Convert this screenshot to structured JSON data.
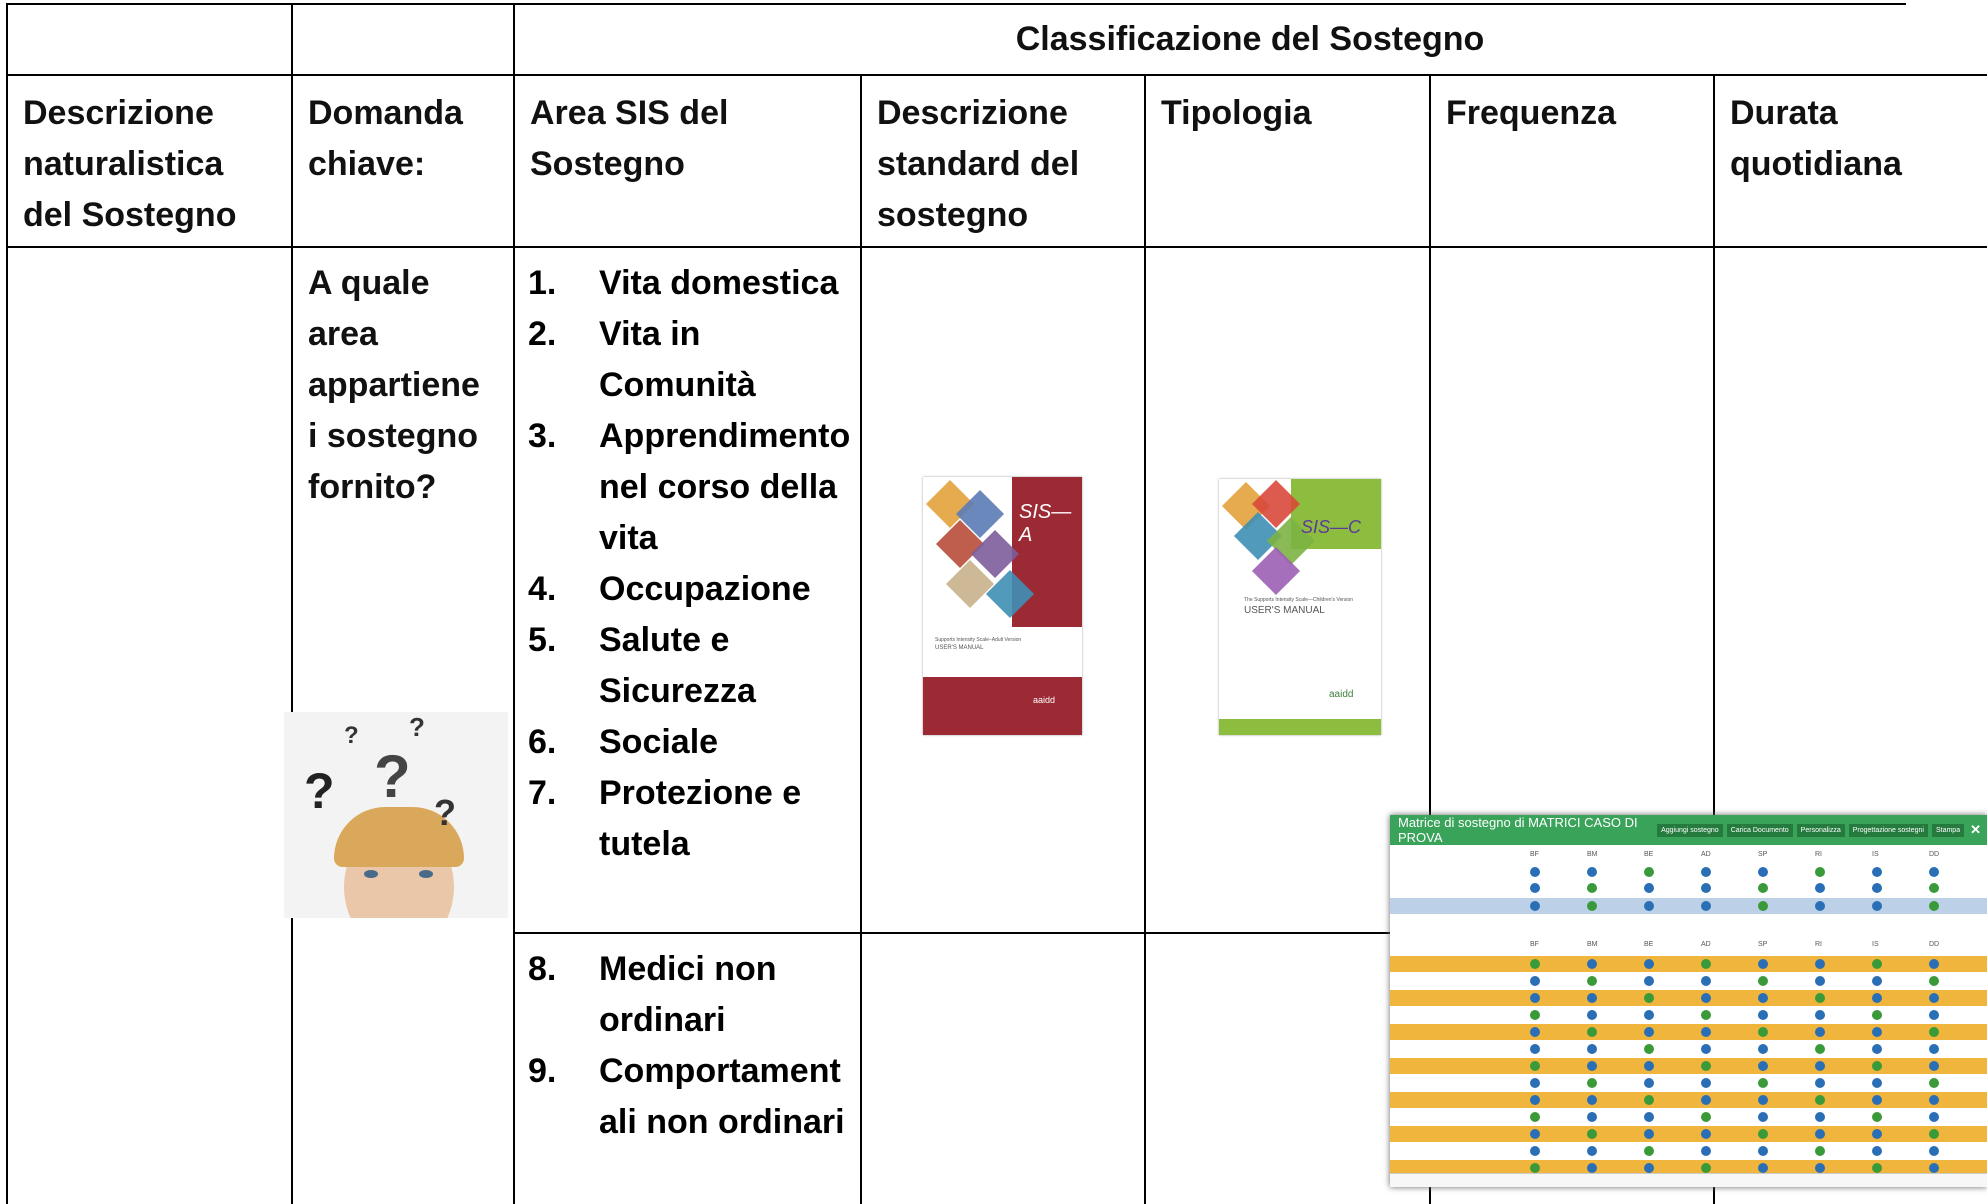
{
  "header": {
    "group_title": "Classificazione del Sostegno"
  },
  "table": {
    "headers": [
      "Descrizione naturalistica del Sostegno",
      "Domanda chiave:",
      "Area SIS del Sostegno",
      "Descrizione standard del sostegno",
      "Tipologia",
      "Frequenza",
      "Durata quotidiana"
    ],
    "question": "A quale area appartiene i sostegno fornito?",
    "areas_top": [
      {
        "number": "1.",
        "text": "Vita domestica"
      },
      {
        "number": "2.",
        "text": "Vita in Comunità"
      },
      {
        "number": "3.",
        "text": "Apprendimento nel corso della vita"
      },
      {
        "number": "4.",
        "text": "Occupazione"
      },
      {
        "number": "5.",
        "text": "Salute e Sicurezza"
      },
      {
        "number": "6.",
        "text": "Sociale"
      },
      {
        "number": "7.",
        "text": "Protezione e tutela"
      }
    ],
    "areas_bottom": [
      {
        "number": "8.",
        "text": "Medici non ordinari"
      },
      {
        "number": "9.",
        "text": "Comportamentali non ordinari"
      }
    ]
  },
  "images": {
    "sis_a": {
      "title": "SIS—A",
      "subtitle": "Supports Intensity Scale–Adult Version",
      "manual": "USER'S MANUAL",
      "publisher": "aaidd"
    },
    "sis_c": {
      "title": "SIS—C",
      "subtitle": "The Supports Intensity Scale—Children's Version",
      "manual": "USER'S MANUAL",
      "publisher": "aaidd"
    },
    "matrix": {
      "title": "Matrice di sostegno di MATRICI CASO DI PROVA",
      "buttons": [
        "Aggiungi sostegno",
        "Carica Documento",
        "Personalizza",
        "Progettazione sostegni",
        "Stampa"
      ],
      "columns": [
        "BF",
        "BM",
        "BE",
        "AD",
        "SP",
        "RI",
        "IS",
        "DD"
      ]
    }
  }
}
